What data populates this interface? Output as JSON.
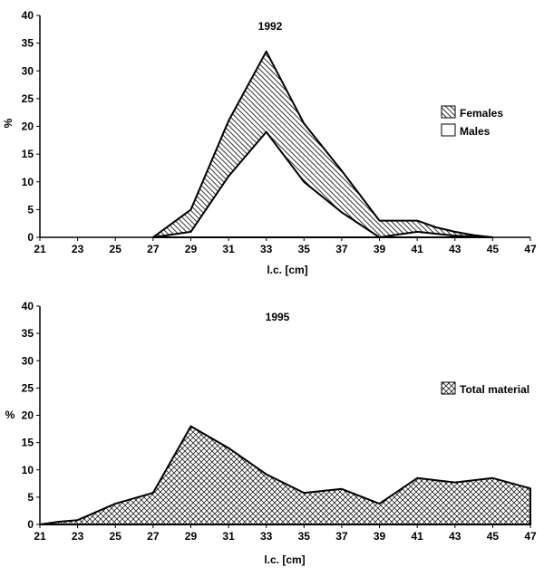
{
  "chart_data": [
    {
      "type": "area",
      "title": "1992",
      "xlabel": "l.c. [cm]",
      "ylabel": "%",
      "xlim": [
        21,
        47
      ],
      "ylim": [
        0,
        40
      ],
      "x_ticks": [
        21,
        23,
        25,
        27,
        29,
        31,
        33,
        35,
        37,
        39,
        41,
        43,
        45,
        47
      ],
      "y_ticks": [
        0,
        5,
        10,
        15,
        20,
        25,
        30,
        35,
        40
      ],
      "grid": false,
      "legend_position": "right",
      "series": [
        {
          "name": "Females",
          "fill": "hatch-diagonal",
          "x": [
            27,
            28,
            29,
            31,
            33,
            35,
            37,
            39,
            40,
            41,
            42,
            43,
            44,
            45
          ],
          "values": [
            0,
            2.5,
            5,
            21,
            33.5,
            20.5,
            12,
            3,
            3,
            3,
            1.8,
            1,
            0.4,
            0
          ]
        },
        {
          "name": "Males",
          "fill": "white",
          "x": [
            27,
            29,
            31,
            33,
            35,
            37,
            39,
            40,
            41,
            43,
            45
          ],
          "values": [
            0,
            1,
            11,
            19,
            10,
            4.5,
            0,
            0.5,
            1,
            0.3,
            0
          ]
        }
      ]
    },
    {
      "type": "area",
      "title": "1995",
      "xlabel": "l.c. [cm]",
      "ylabel": "%",
      "xlim": [
        21,
        47
      ],
      "ylim": [
        0,
        40
      ],
      "x_ticks": [
        21,
        23,
        25,
        27,
        29,
        31,
        33,
        35,
        37,
        39,
        41,
        43,
        45,
        47
      ],
      "y_ticks": [
        0,
        5,
        10,
        15,
        20,
        25,
        30,
        35,
        40
      ],
      "grid": false,
      "legend_position": "right",
      "series": [
        {
          "name": "Total material",
          "fill": "hatch-cross",
          "x": [
            21,
            22,
            23,
            25,
            27,
            29,
            31,
            33,
            35,
            37,
            39,
            41,
            43,
            45,
            47
          ],
          "values": [
            0,
            0.5,
            0.8,
            3.8,
            5.8,
            18,
            14,
            9.2,
            5.8,
            6.5,
            3.8,
            8.5,
            7.7,
            8.5,
            6.6
          ]
        }
      ]
    }
  ]
}
